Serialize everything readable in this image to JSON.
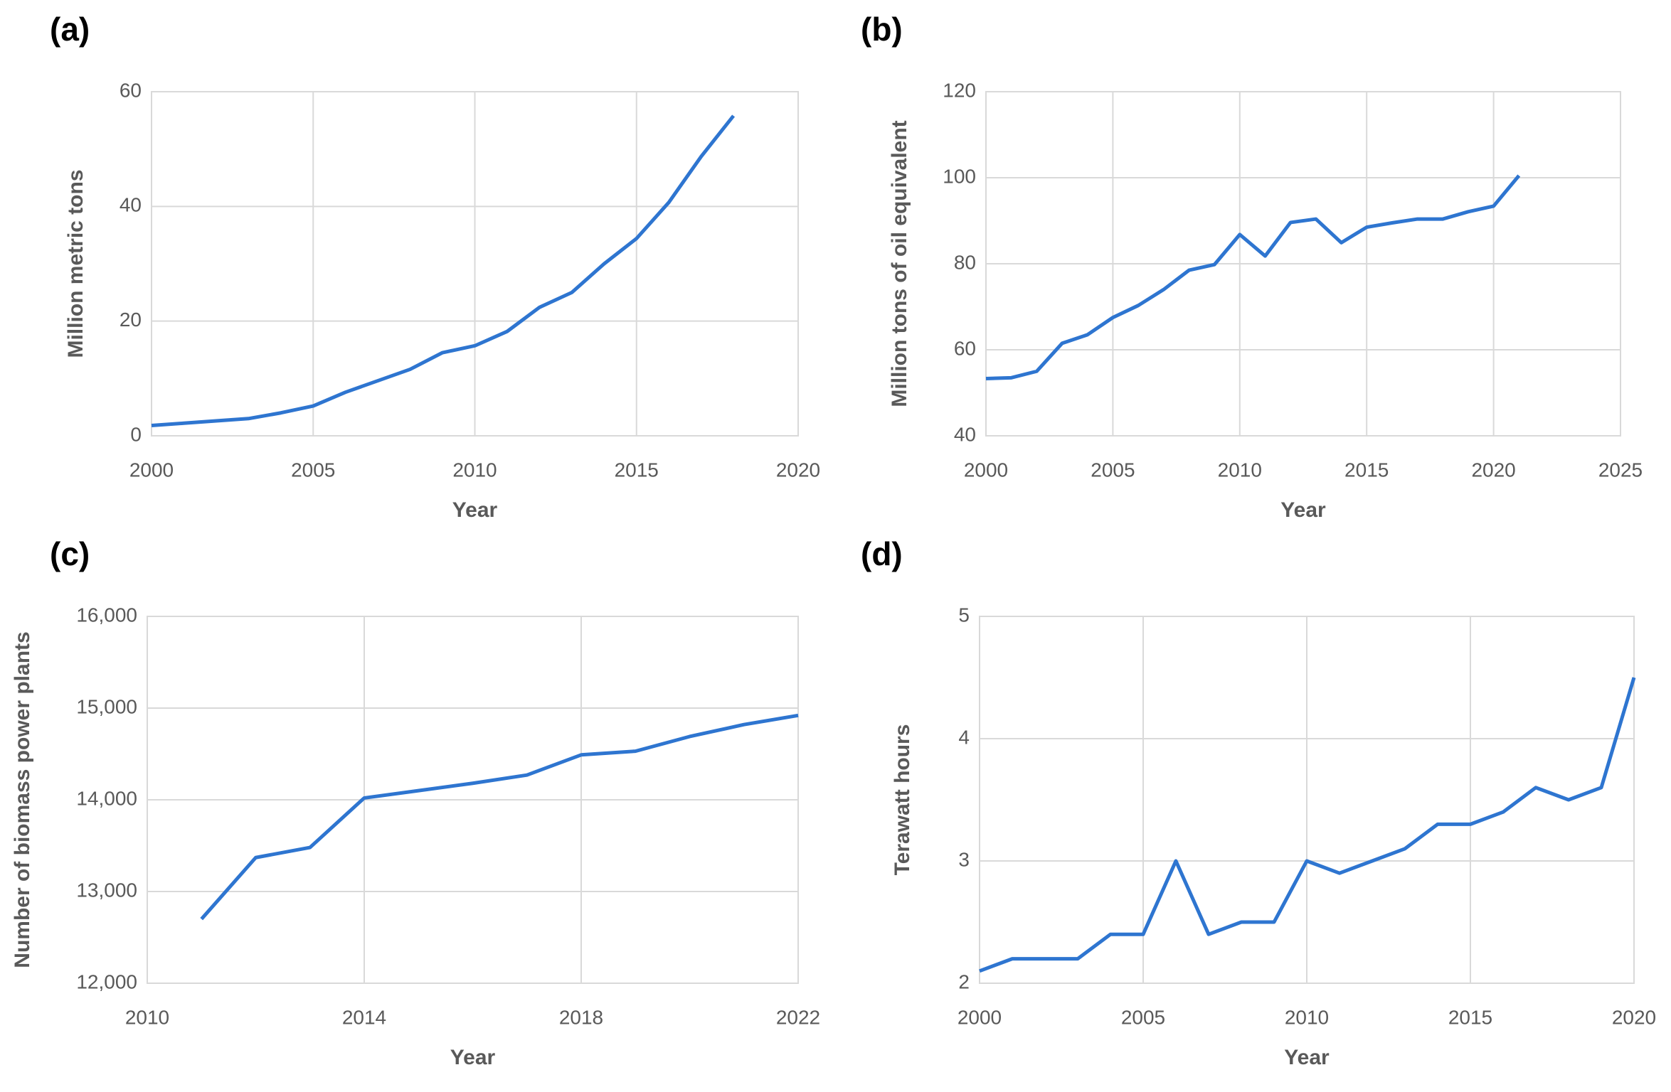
{
  "chart_data": [
    {
      "type": "line",
      "panel_label": "(a)",
      "x_label": "Year",
      "y_label": "Million metric tons",
      "x": [
        2000,
        2001,
        2002,
        2003,
        2004,
        2005,
        2006,
        2007,
        2008,
        2009,
        2010,
        2011,
        2012,
        2013,
        2014,
        2015,
        2016,
        2017,
        2018
      ],
      "values": [
        1.8,
        2.2,
        2.6,
        3.0,
        4.0,
        5.2,
        7.6,
        9.6,
        11.6,
        14.5,
        15.7,
        18.2,
        22.4,
        25.0,
        30.0,
        34.4,
        40.7,
        48.7,
        55.8
      ],
      "color": "#2e75d0",
      "xlim": [
        2000,
        2020
      ],
      "xticks": [
        2000,
        2005,
        2010,
        2015,
        2020
      ],
      "ylim": [
        0,
        60
      ],
      "yticks": [
        0,
        20,
        40,
        60
      ],
      "grid": true
    },
    {
      "type": "line",
      "panel_label": "(b)",
      "x_label": "Year",
      "y_label": "Million tons of oil equivalent",
      "x": [
        2000,
        2001,
        2002,
        2003,
        2004,
        2005,
        2006,
        2007,
        2008,
        2009,
        2010,
        2011,
        2012,
        2013,
        2014,
        2015,
        2016,
        2017,
        2018,
        2019,
        2020,
        2021
      ],
      "values": [
        53.3,
        53.5,
        55,
        61.5,
        63.5,
        67.5,
        70.3,
        74,
        78.5,
        79.8,
        86.8,
        81.8,
        89.6,
        90.4,
        84.9,
        88.5,
        89.5,
        90.4,
        90.4,
        92.1,
        93.4,
        100.5
      ],
      "color": "#2e75d0",
      "xlim": [
        2000,
        2025
      ],
      "xticks": [
        2000,
        2005,
        2010,
        2015,
        2020,
        2025
      ],
      "ylim": [
        40,
        120
      ],
      "yticks": [
        40,
        60,
        80,
        100,
        120
      ],
      "grid": true
    },
    {
      "type": "line",
      "panel_label": "(c)",
      "x_label": "Year",
      "y_label": "Number of biomass power plants",
      "x": [
        2011,
        2012,
        2013,
        2014,
        2015,
        2016,
        2017,
        2018,
        2019,
        2020,
        2021,
        2022
      ],
      "values": [
        12700,
        13370,
        13480,
        14020,
        14100,
        14180,
        14270,
        14490,
        14530,
        14690,
        14820,
        14920
      ],
      "color": "#2e75d0",
      "xlim": [
        2010,
        2022
      ],
      "xticks": [
        2010,
        2014,
        2018,
        2022
      ],
      "ylim": [
        12000,
        16000
      ],
      "yticks": [
        {
          "value": 12000,
          "label": "12,000"
        },
        {
          "value": 13000,
          "label": "13,000"
        },
        {
          "value": 14000,
          "label": "14,000"
        },
        {
          "value": 15000,
          "label": "15,000"
        },
        {
          "value": 16000,
          "label": "16,000"
        }
      ],
      "grid": true
    },
    {
      "type": "line",
      "panel_label": "(d)",
      "x_label": "Year",
      "y_label": "Terawatt hours",
      "x": [
        2000,
        2001,
        2002,
        2003,
        2004,
        2005,
        2006,
        2007,
        2008,
        2009,
        2010,
        2011,
        2012,
        2013,
        2014,
        2015,
        2016,
        2017,
        2018,
        2019,
        2020
      ],
      "values": [
        2.1,
        2.2,
        2.2,
        2.2,
        2.4,
        2.4,
        3.0,
        2.4,
        2.5,
        2.5,
        3.0,
        2.9,
        3.0,
        3.1,
        3.3,
        3.3,
        3.4,
        3.6,
        3.5,
        3.6,
        4.5
      ],
      "color": "#2e75d0",
      "xlim": [
        2000,
        2020
      ],
      "xticks": [
        2000,
        2005,
        2010,
        2015,
        2020
      ],
      "ylim": [
        2,
        5
      ],
      "yticks": [
        2,
        3,
        4,
        5
      ],
      "grid": true
    }
  ]
}
